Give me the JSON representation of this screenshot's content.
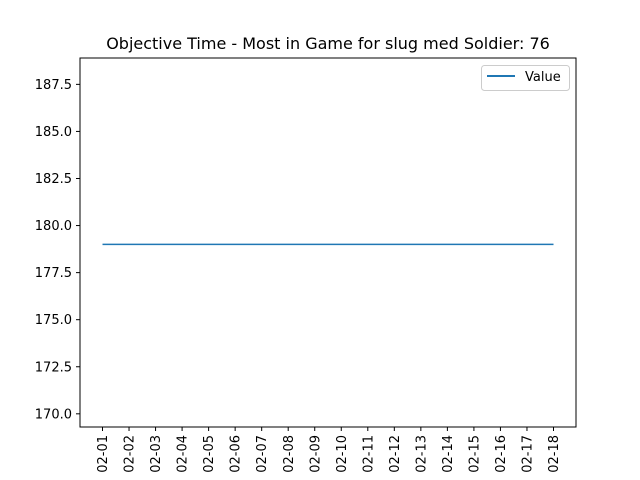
{
  "chart_data": {
    "type": "line",
    "title": "Objective Time - Most in Game for slug med Soldier: 76",
    "xlabel": "",
    "ylabel": "",
    "x": [
      "02-01",
      "02-02",
      "02-03",
      "02-04",
      "02-05",
      "02-06",
      "02-07",
      "02-08",
      "02-09",
      "02-10",
      "02-11",
      "02-12",
      "02-13",
      "02-14",
      "02-15",
      "02-16",
      "02-17",
      "02-18"
    ],
    "series": [
      {
        "name": "Value",
        "color": "#1f77b4",
        "values": [
          179,
          179,
          179,
          179,
          179,
          179,
          179,
          179,
          179,
          179,
          179,
          179,
          179,
          179,
          179,
          179,
          179,
          179
        ]
      }
    ],
    "ylim": [
      169.3,
      188.9
    ],
    "yticks": [
      170.0,
      172.5,
      175.0,
      177.5,
      180.0,
      182.5,
      185.0,
      187.5
    ],
    "ytick_labels": [
      "170.0",
      "172.5",
      "175.0",
      "177.5",
      "180.0",
      "182.5",
      "185.0",
      "187.5"
    ],
    "x_tick_rotation": "vertical",
    "grid": false,
    "legend_position": "top-right"
  }
}
